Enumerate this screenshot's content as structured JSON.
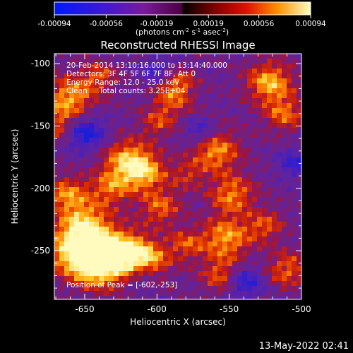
{
  "chart_data": {
    "type": "heatmap",
    "title": "Reconstructed RHESSI Image",
    "xlabel": "Heliocentric X (arcsec)",
    "ylabel": "Heliocentric Y (arcsec)",
    "x_ticks": [
      "-650",
      "-600",
      "-550",
      "-500"
    ],
    "y_ticks": [
      "-100",
      "-150",
      "-200",
      "-250"
    ],
    "xlim": [
      -671,
      -500
    ],
    "ylim": [
      -289,
      -92
    ],
    "colorbar": {
      "ticks": [
        "-0.00094",
        "-0.00056",
        "-0.00019",
        "0.00019",
        "0.00056",
        "0.00094"
      ],
      "range": [
        -0.00094,
        0.00094
      ],
      "unit_base": "(photons cm",
      "unit_exp1": "-2",
      "unit_mid1": " s",
      "unit_exp2": "-1",
      "unit_mid2": " asec",
      "unit_exp3": "-2",
      "unit_end": ")"
    },
    "annotations": [
      "20-Feb-2014 13:10:16.000 to 13:14:40.000",
      "Detectors: 3F 4F 5F 6F 7F 8F, Att 0",
      "Energy Range: 12.0 - 25.0 keV",
      "Clean     Total counts: 3.25E+04"
    ],
    "peak_label": "Position of Peak = [-602,-253]",
    "grid": false
  },
  "footer": {
    "timestamp": "13-May-2022 02:41"
  }
}
